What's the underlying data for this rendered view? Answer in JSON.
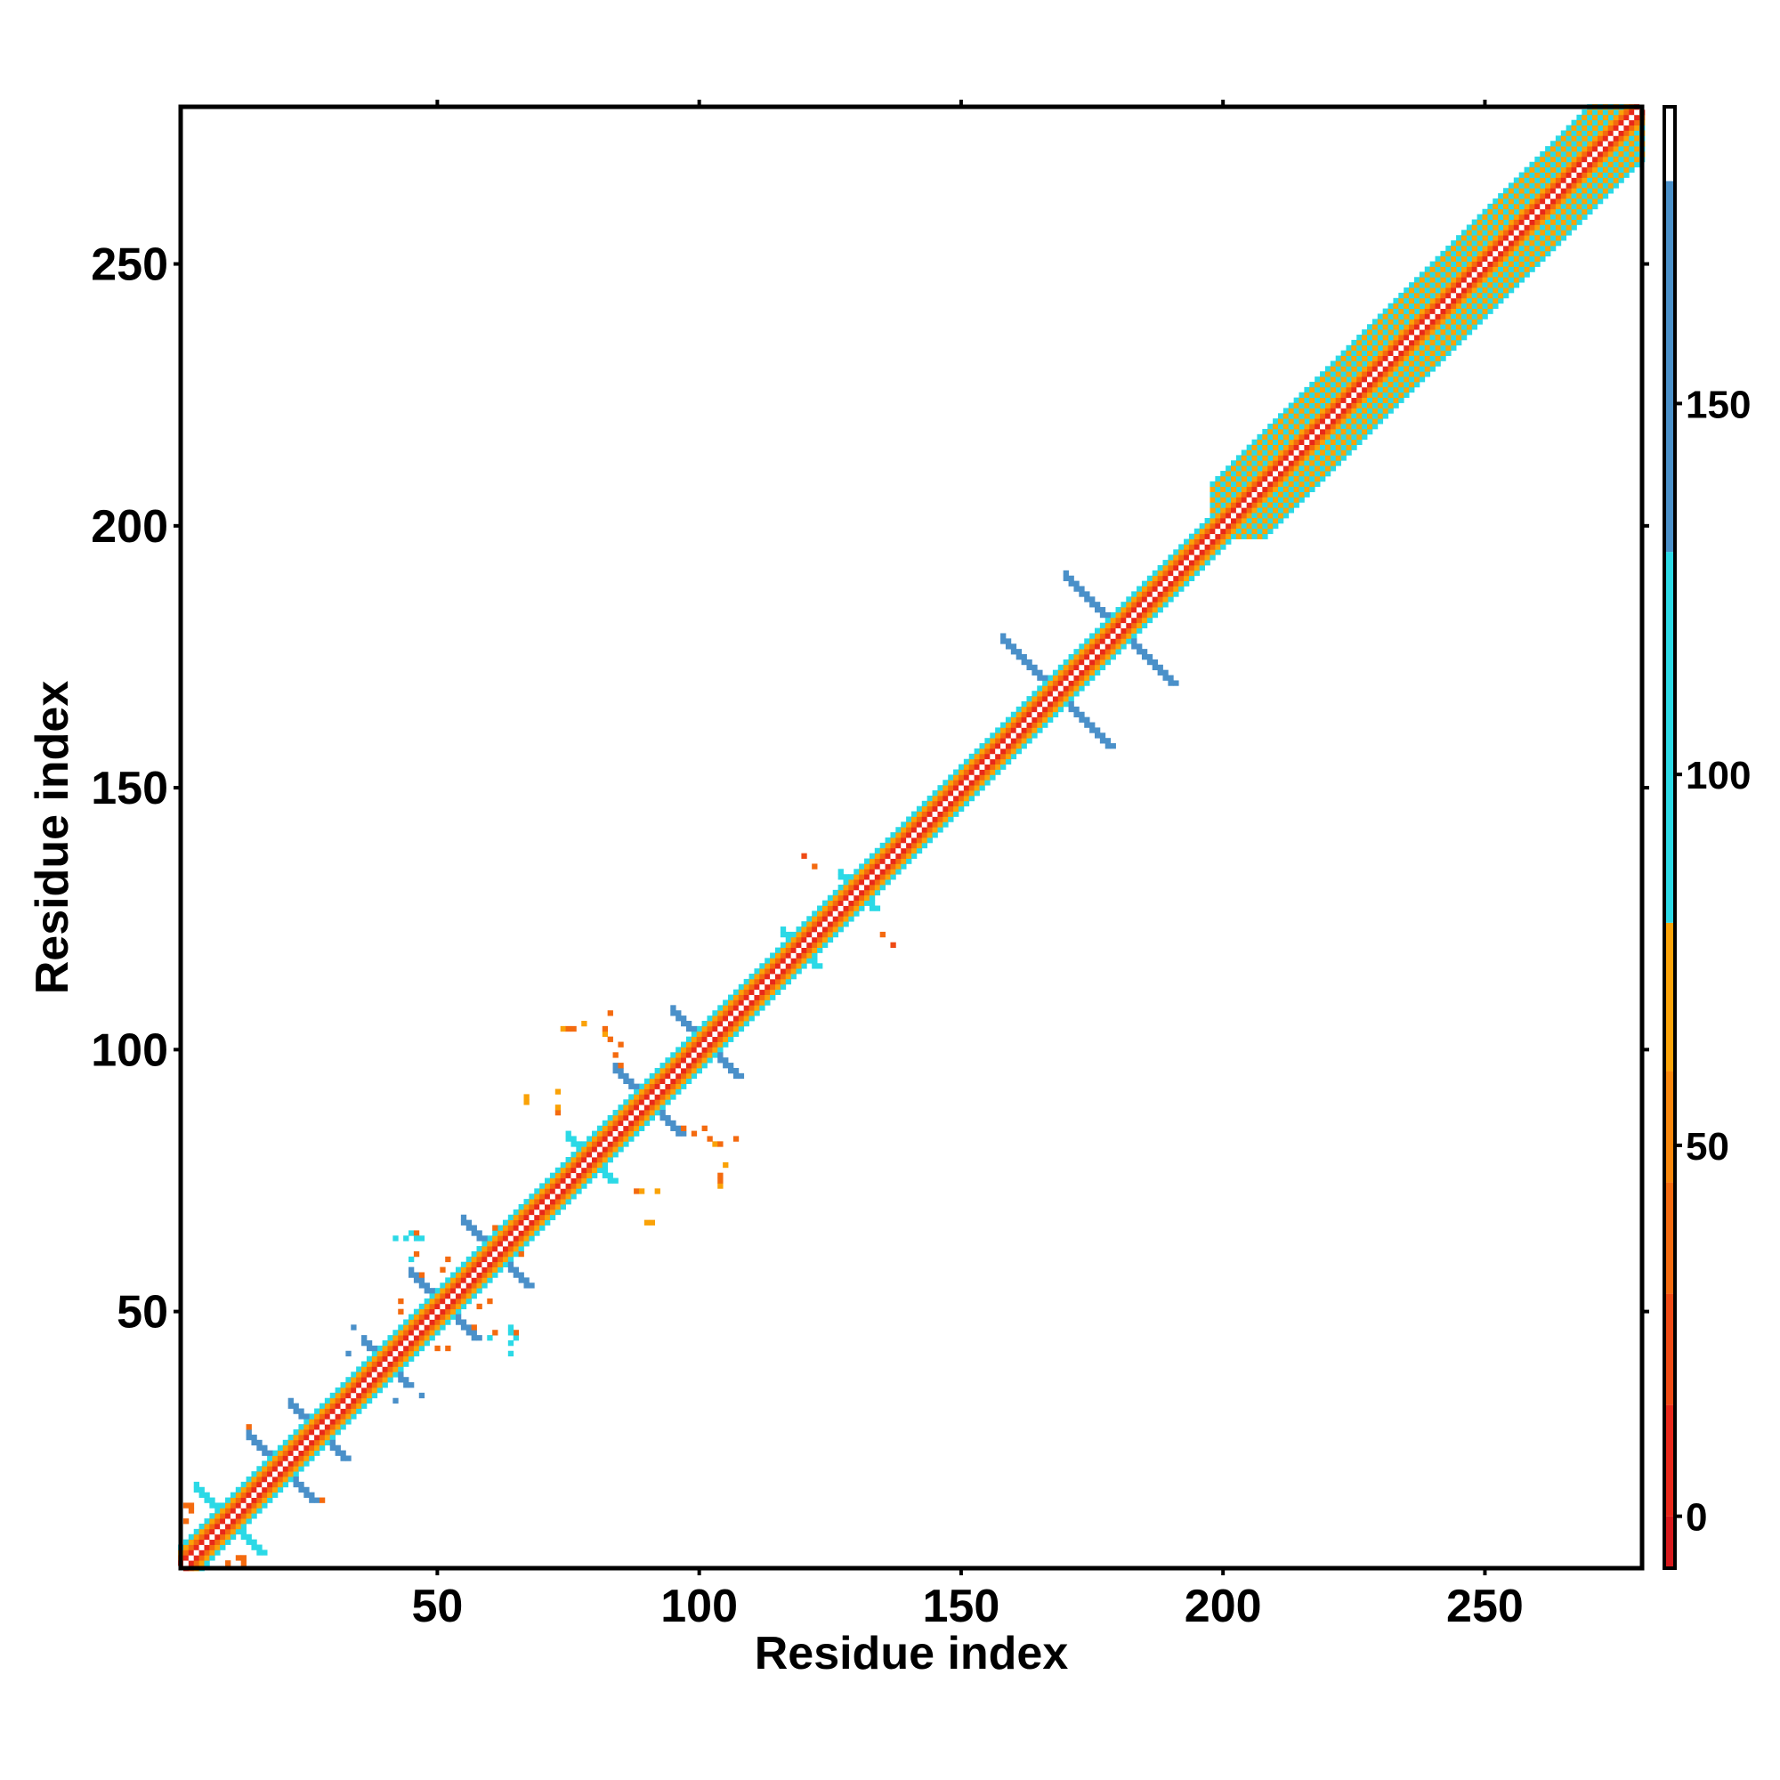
{
  "chart_data": {
    "type": "heatmap",
    "title": "",
    "xlabel": "Residue index",
    "ylabel": "Residue index",
    "xlim": [
      1,
      280
    ],
    "ylim": [
      1,
      280
    ],
    "x_ticks": [
      50,
      100,
      150,
      200,
      250
    ],
    "y_ticks": [
      50,
      100,
      150,
      200,
      250
    ],
    "colorbar": {
      "range": [
        -7,
        190
      ],
      "ticks": [
        0,
        50,
        100,
        150
      ],
      "bands": [
        {
          "from": -7,
          "to": 0,
          "color": "#d7191c"
        },
        {
          "from": 0,
          "to": 15,
          "color": "#e8281a"
        },
        {
          "from": 15,
          "to": 30,
          "color": "#ef4a14"
        },
        {
          "from": 30,
          "to": 45,
          "color": "#f46a0f"
        },
        {
          "from": 45,
          "to": 60,
          "color": "#f8860b"
        },
        {
          "from": 60,
          "to": 80,
          "color": "#faa207"
        },
        {
          "from": 80,
          "to": 130,
          "color": "#2bd9e6"
        },
        {
          "from": 130,
          "to": 180,
          "color": "#4a90c9"
        },
        {
          "from": 180,
          "to": 190,
          "color": "#ffffff"
        }
      ]
    },
    "diagonal": {
      "center_value": 190,
      "band_values": [
        10,
        40,
        70,
        100
      ]
    },
    "helix_band": {
      "from": 198,
      "to": 280,
      "width_residues": 6,
      "value": 100
    },
    "cross_patterns": [
      {
        "center": 10,
        "arm": 6,
        "value": 110,
        "secondary_value": 100
      },
      {
        "center": 20,
        "arm": 6,
        "value": 150,
        "secondary_value": 40
      },
      {
        "center": 27,
        "arm": 5,
        "value": 150,
        "secondary_value": 100
      },
      {
        "center": 40,
        "arm": 4,
        "value": 150,
        "secondary_value": 100
      },
      {
        "center": 51,
        "arm": 6,
        "value": 150,
        "secondary_value": 100
      },
      {
        "center": 61,
        "arm": 6,
        "value": 150,
        "secondary_value": 100
      },
      {
        "center": 79,
        "arm": 4,
        "value": 110,
        "secondary_value": 100
      },
      {
        "center": 90,
        "arm": 6,
        "value": 150,
        "secondary_value": 100
      },
      {
        "center": 101,
        "arm": 6,
        "value": 150,
        "secondary_value": 100
      },
      {
        "center": 119,
        "arm": 3,
        "value": 110,
        "secondary_value": 100
      },
      {
        "center": 130,
        "arm": 3,
        "value": 110,
        "secondary_value": 100
      },
      {
        "center": 168,
        "arm": 10,
        "value": 150,
        "secondary_value": 110
      },
      {
        "center": 180,
        "arm": 10,
        "value": 150,
        "secondary_value": 110
      }
    ],
    "scattered_points": [
      {
        "x": 2,
        "y": 10,
        "value": 40
      },
      {
        "x": 3,
        "y": 13,
        "value": 40
      },
      {
        "x": 12,
        "y": 3,
        "value": 45
      },
      {
        "x": 13,
        "y": 2,
        "value": 45
      },
      {
        "x": 28,
        "y": 14,
        "value": 45
      },
      {
        "x": 36,
        "y": 37,
        "value": 100
      },
      {
        "x": 37,
        "y": 44,
        "value": 40
      },
      {
        "x": 42,
        "y": 33,
        "value": 150
      },
      {
        "x": 43,
        "y": 38,
        "value": 40
      },
      {
        "x": 44,
        "y": 44,
        "value": 110
      },
      {
        "x": 47,
        "y": 34,
        "value": 150
      },
      {
        "x": 47,
        "y": 57,
        "value": 45
      },
      {
        "x": 50,
        "y": 43,
        "value": 40
      },
      {
        "x": 52,
        "y": 43,
        "value": 40
      },
      {
        "x": 55,
        "y": 47,
        "value": 110
      },
      {
        "x": 58,
        "y": 56,
        "value": 40
      },
      {
        "x": 60,
        "y": 45,
        "value": 110
      },
      {
        "x": 61,
        "y": 46,
        "value": 40
      },
      {
        "x": 64,
        "y": 47,
        "value": 110
      },
      {
        "x": 65,
        "y": 45,
        "value": 110
      },
      {
        "x": 65,
        "y": 46,
        "value": 40
      },
      {
        "x": 42,
        "y": 64,
        "value": 110
      },
      {
        "x": 44,
        "y": 64,
        "value": 110
      },
      {
        "x": 46,
        "y": 64,
        "value": 110
      },
      {
        "x": 52,
        "y": 60,
        "value": 40
      },
      {
        "x": 51,
        "y": 58,
        "value": 40
      },
      {
        "x": 58,
        "y": 65,
        "value": 40
      },
      {
        "x": 66,
        "y": 61,
        "value": 40
      },
      {
        "x": 67,
        "y": 90,
        "value": 70
      },
      {
        "x": 73,
        "y": 88,
        "value": 40
      },
      {
        "x": 74,
        "y": 104,
        "value": 70
      },
      {
        "x": 76,
        "y": 104,
        "value": 40
      },
      {
        "x": 78,
        "y": 105,
        "value": 70
      },
      {
        "x": 82,
        "y": 103,
        "value": 70
      },
      {
        "x": 83,
        "y": 102,
        "value": 40
      },
      {
        "x": 85,
        "y": 101,
        "value": 40
      },
      {
        "x": 82,
        "y": 85,
        "value": 110
      },
      {
        "x": 83,
        "y": 87,
        "value": 40
      },
      {
        "x": 84,
        "y": 86,
        "value": 40
      },
      {
        "x": 89,
        "y": 73,
        "value": 70
      },
      {
        "x": 92,
        "y": 73,
        "value": 70
      },
      {
        "x": 91,
        "y": 67,
        "value": 70
      },
      {
        "x": 97,
        "y": 85,
        "value": 40
      },
      {
        "x": 99,
        "y": 84,
        "value": 40
      },
      {
        "x": 104,
        "y": 82,
        "value": 40
      },
      {
        "x": 104,
        "y": 75,
        "value": 40
      },
      {
        "x": 107,
        "y": 83,
        "value": 40
      },
      {
        "x": 108,
        "y": 110,
        "value": 20
      },
      {
        "x": 122,
        "y": 135,
        "value": 40
      },
      {
        "x": 137,
        "y": 120,
        "value": 20
      }
    ]
  }
}
